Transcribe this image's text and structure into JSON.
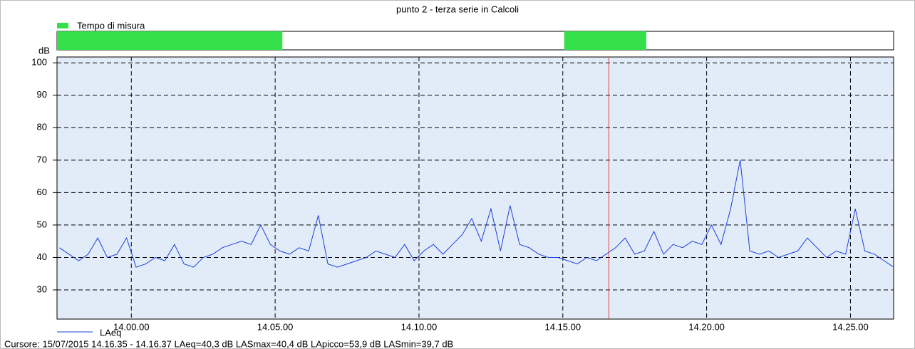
{
  "chart_data": {
    "type": "line",
    "title": "punto 2 - terza serie in Calcoli",
    "ylabel": "dB",
    "x": [
      50250,
      50270,
      50290,
      50310,
      50330,
      50350,
      50370,
      50390,
      50410,
      50430,
      50450,
      50470,
      50490,
      50510,
      50530,
      50550,
      50570,
      50590,
      50610,
      50630,
      50650,
      50670,
      50690,
      50710,
      50730,
      50750,
      50770,
      50790,
      50810,
      50830,
      50850,
      50870,
      50890,
      50910,
      50930,
      50950,
      50970,
      50990,
      51010,
      51030,
      51050,
      51070,
      51090,
      51110,
      51130,
      51150,
      51170,
      51190,
      51210,
      51230,
      51250,
      51270,
      51290,
      51310,
      51330,
      51350,
      51370,
      51390,
      51410,
      51430,
      51450,
      51470,
      51490,
      51510,
      51530,
      51550,
      51570,
      51590,
      51610,
      51630,
      51650,
      51670,
      51690,
      51710,
      51730,
      51750,
      51770,
      51790,
      51810,
      51830,
      51850,
      51870,
      51890,
      51910,
      51930,
      51950,
      51970,
      51990
    ],
    "series": [
      {
        "name": "LAeq",
        "color": "#1f3fe0",
        "values": [
          43,
          41,
          39,
          41,
          46,
          40,
          41,
          46,
          37,
          38,
          40,
          39,
          44,
          38,
          37,
          40,
          41,
          43,
          44,
          45,
          44,
          50,
          44,
          42,
          41,
          43,
          42,
          53,
          38,
          37,
          38,
          39,
          40,
          42,
          41,
          40,
          44,
          39,
          42,
          44,
          41,
          44,
          47,
          52,
          45,
          55,
          42,
          56,
          44,
          43,
          41,
          40,
          40,
          39,
          38,
          40,
          39,
          41,
          43,
          46,
          41,
          42,
          48,
          41,
          44,
          43,
          45,
          44,
          50,
          44,
          55,
          70,
          42,
          41,
          42,
          40,
          41,
          42,
          46,
          43,
          40,
          42,
          41,
          55,
          42,
          41,
          39,
          37
        ]
      }
    ],
    "xlim": [
      50245,
      51990
    ],
    "xticks": [
      {
        "value": 50400,
        "label": "14.00.00"
      },
      {
        "value": 50700,
        "label": "14.05.00"
      },
      {
        "value": 51000,
        "label": "14.10.00"
      },
      {
        "value": 51300,
        "label": "14.15.00"
      },
      {
        "value": 51600,
        "label": "14.20.00"
      },
      {
        "value": 51900,
        "label": "14.25.00"
      }
    ],
    "ylim": [
      21,
      101.8
    ],
    "yticks": [
      30,
      40,
      50,
      60,
      70,
      80,
      90,
      100
    ],
    "grid": true,
    "measure": {
      "name": "Tempo di misura",
      "color": "#33e04a",
      "segments": [
        [
          50245,
          50715
        ],
        [
          51303,
          51474
        ]
      ]
    },
    "cursor_x": 51396,
    "cursor_color": "#e04040",
    "status": "Cursore: 15/07/2015 14.16.35 - 14.16.37   LAeq=40,3 dB   LASmax=40,4 dB   LApicco=53,9 dB   LASmin=39,7 dB"
  }
}
